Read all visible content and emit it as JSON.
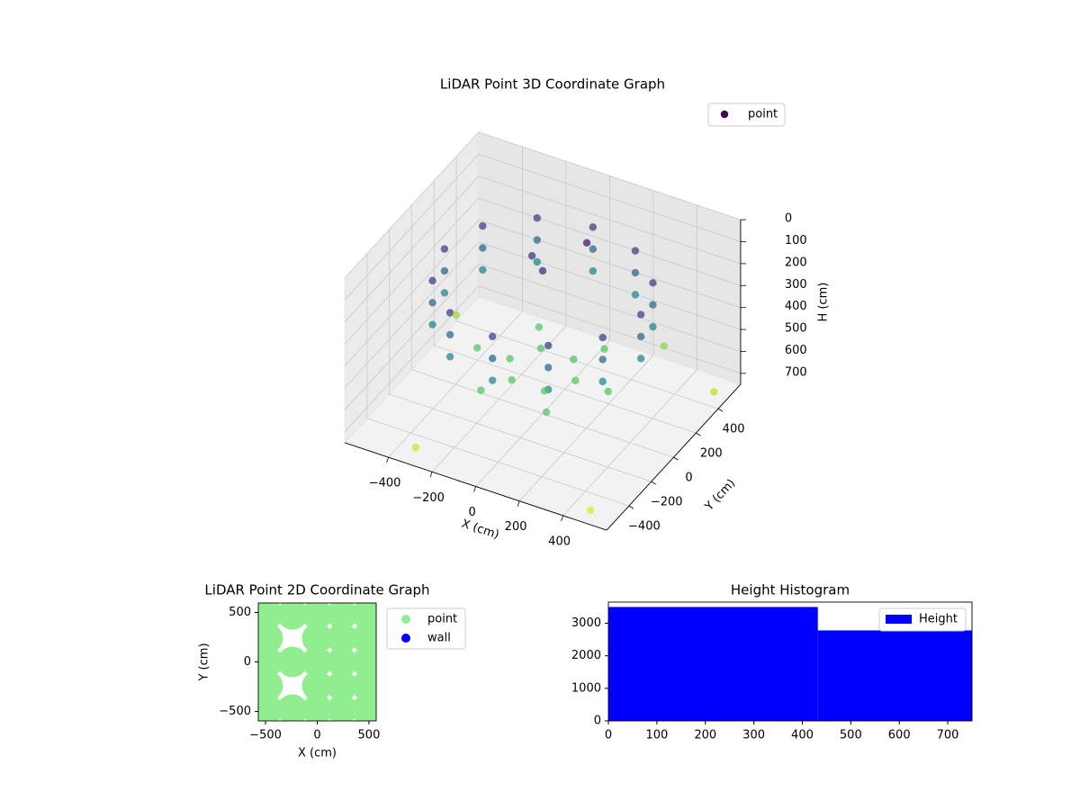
{
  "chart_data": [
    {
      "type": "scatter3d",
      "title": "LiDAR Point 3D Coordinate Graph",
      "xlabel": "X (cm)",
      "ylabel": "Y (cm)",
      "zlabel": "H (cm)",
      "xlim": [
        -600,
        600
      ],
      "ylim": [
        -600,
        600
      ],
      "zlim": [
        0,
        750
      ],
      "z_inverted": true,
      "xticks": [
        {
          "value": -400,
          "label": "−400"
        },
        {
          "value": -200,
          "label": "−200"
        },
        0,
        200,
        400
      ],
      "yticks": [
        {
          "value": -400,
          "label": "−400"
        },
        {
          "value": -200,
          "label": "−200"
        },
        0,
        200,
        400
      ],
      "zticks": [
        0,
        100,
        200,
        300,
        400,
        500,
        600,
        700
      ],
      "grid": true,
      "cmap": "viridis",
      "legend": "upper right",
      "series": [
        {
          "name": "point",
          "x": [
            450,
            390,
            225,
            0,
            -225,
            -390,
            -450,
            -390,
            -225,
            0,
            225,
            390,
            450,
            390,
            225,
            0,
            -225,
            -390,
            -450,
            -390,
            -225,
            0,
            225,
            390,
            450,
            390,
            225,
            0,
            -225,
            -390,
            -450,
            -390,
            -225,
            0,
            225,
            390,
            150,
            75,
            -75,
            -150,
            -75,
            75,
            300,
            150,
            -150,
            -300,
            -150,
            150,
            -550,
            500,
            580,
            -300,
            100,
            -100,
            0,
            300
          ],
          "y": [
            0,
            225,
            390,
            450,
            390,
            225,
            0,
            -225,
            -390,
            -450,
            -390,
            -225,
            0,
            225,
            390,
            450,
            390,
            225,
            0,
            -225,
            -390,
            -450,
            -390,
            -225,
            0,
            225,
            390,
            450,
            390,
            225,
            0,
            -225,
            -390,
            -450,
            -390,
            -225,
            0,
            130,
            130,
            0,
            -130,
            -130,
            0,
            260,
            260,
            0,
            -260,
            -260,
            300,
            -550,
            400,
            -550,
            200,
            100,
            0,
            500
          ],
          "z": [
            150,
            150,
            150,
            150,
            150,
            150,
            150,
            150,
            150,
            150,
            150,
            150,
            250,
            250,
            250,
            250,
            250,
            250,
            250,
            250,
            250,
            250,
            250,
            250,
            350,
            350,
            350,
            350,
            350,
            350,
            350,
            350,
            350,
            350,
            350,
            350,
            550,
            550,
            550,
            550,
            550,
            550,
            550,
            550,
            550,
            550,
            550,
            550,
            650,
            720,
            680,
            700,
            50,
            120,
            100,
            620
          ]
        }
      ]
    },
    {
      "type": "scatter",
      "title": "LiDAR Point 2D Coordinate Graph",
      "xlabel": "X (cm)",
      "ylabel": "Y (cm)",
      "xlim": [
        -570,
        570
      ],
      "ylim": [
        -595,
        595
      ],
      "xticks": [
        {
          "value": -500,
          "label": "−500"
        },
        0,
        500
      ],
      "yticks": [
        {
          "value": -500,
          "label": "−500"
        },
        0,
        500
      ],
      "legend": "outside right",
      "series": [
        {
          "name": "point",
          "color": "#90ee90",
          "x": [
            -480,
            -240,
            0,
            240,
            480,
            -480,
            0,
            240,
            480,
            -480,
            -240,
            0,
            240,
            480,
            -480,
            0,
            240,
            480,
            -480,
            -240,
            0,
            240,
            480
          ],
          "y": [
            480,
            480,
            480,
            480,
            480,
            240,
            240,
            240,
            240,
            0,
            0,
            0,
            0,
            0,
            -240,
            -240,
            -240,
            -240,
            -480,
            -480,
            -480,
            -480,
            -480
          ]
        },
        {
          "name": "wall",
          "color": "#0000ff",
          "x": [],
          "y": []
        }
      ]
    },
    {
      "type": "histogram",
      "title": "Height Histogram",
      "bins": [
        0,
        432,
        750
      ],
      "counts": [
        3500,
        2780
      ],
      "xlim": [
        0,
        750
      ],
      "ylim": [
        0,
        3650
      ],
      "xticks": [
        0,
        100,
        200,
        300,
        400,
        500,
        600,
        700
      ],
      "yticks": [
        0,
        1000,
        2000,
        3000
      ],
      "legend": "upper right",
      "series_name": "Height",
      "color": "#0000ff"
    }
  ]
}
